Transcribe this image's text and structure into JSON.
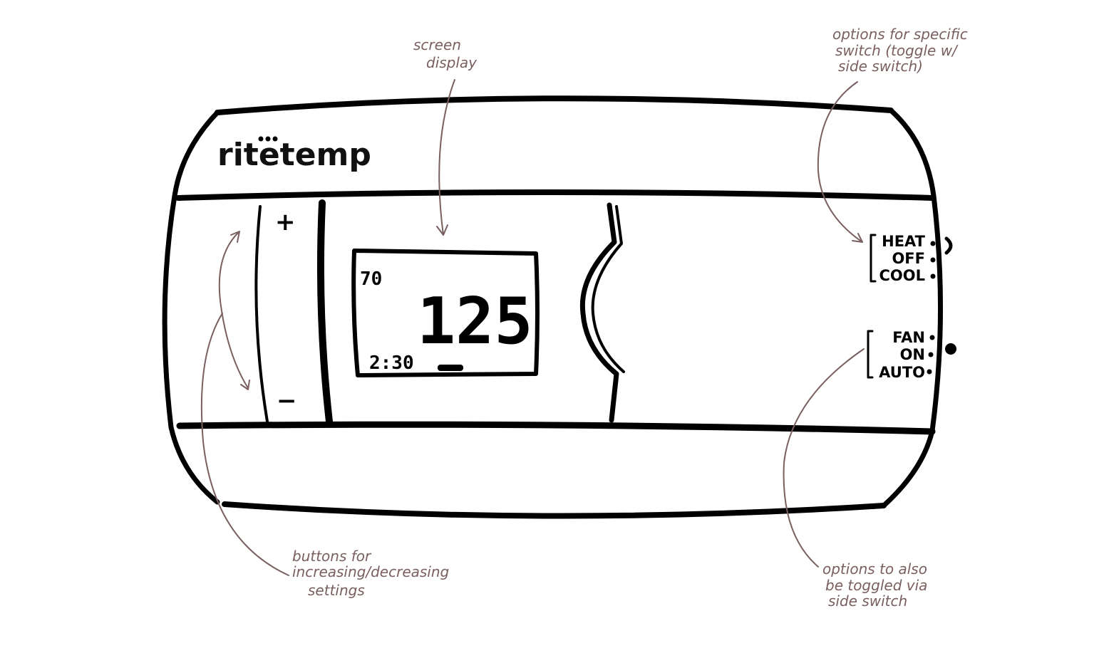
{
  "device": {
    "brand": "ritetemp",
    "buttons": {
      "increase_label": "+",
      "decrease_label": "−"
    },
    "display": {
      "set_temp": "70",
      "main_temp": "125",
      "time": "2:30"
    },
    "mode_switch": {
      "options": [
        "HEAT",
        "OFF",
        "COOL"
      ]
    },
    "fan_switch": {
      "options": [
        "FAN",
        "ON",
        "AUTO"
      ]
    }
  },
  "annotations": {
    "screen": [
      "screen",
      "display"
    ],
    "mode_options": [
      "options for specific",
      "switch (toggle w/",
      "side switch)"
    ],
    "buttons": [
      "buttons for",
      "increasing/decreasing",
      "settings"
    ],
    "fan_options": [
      "options to also",
      "be toggled via",
      "side switch"
    ]
  },
  "colors": {
    "ink": "#000000",
    "annotation": "#7a5f5f"
  }
}
